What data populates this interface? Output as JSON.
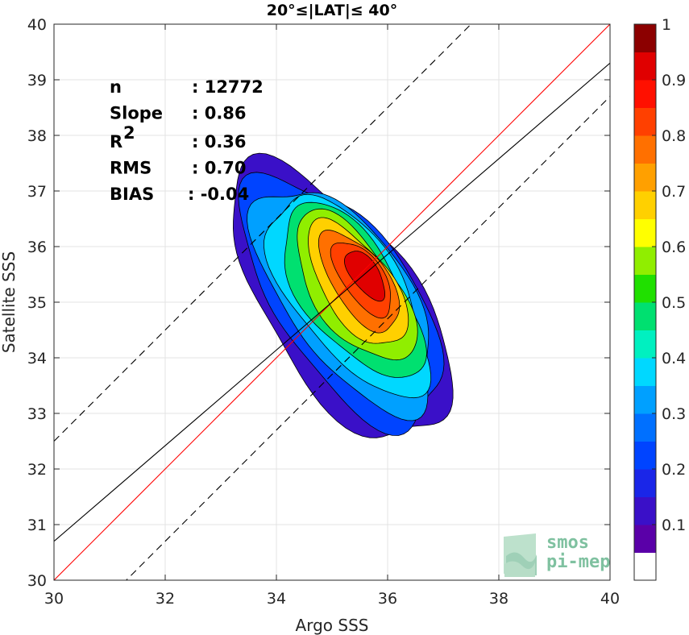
{
  "chart_data": {
    "type": "contour",
    "title": "20°≤|LAT|≤ 40°",
    "xlabel": "Argo SSS",
    "ylabel": "Satellite SSS",
    "xlim": [
      30,
      40
    ],
    "ylim": [
      30,
      40
    ],
    "xticks": [
      "30",
      "32",
      "34",
      "36",
      "38",
      "40"
    ],
    "yticks": [
      "30",
      "31",
      "32",
      "33",
      "34",
      "35",
      "36",
      "37",
      "38",
      "39",
      "40"
    ],
    "grid": true,
    "stats": [
      {
        "label": "n",
        "value": ": 12772"
      },
      {
        "label": "Slope",
        "value": ": 0.86"
      },
      {
        "label": "R",
        "sup": "2",
        "value": ": 0.36"
      },
      {
        "label": "RMS",
        "value": ": 0.70"
      },
      {
        "label": "BIAS",
        "value": ": -0.04"
      }
    ],
    "lines": [
      {
        "name": "one-to-one",
        "color": "#ff0000",
        "style": "solid",
        "slope": 1.0,
        "intercept": 0.0
      },
      {
        "name": "regression",
        "color": "#000000",
        "style": "solid",
        "slope": 0.86,
        "intercept": 4.9
      },
      {
        "name": "upper-bound",
        "color": "#000000",
        "style": "dashed",
        "slope": 1.0,
        "intercept": 2.5
      },
      {
        "name": "lower-bound",
        "color": "#000000",
        "style": "dashed",
        "slope": 1.0,
        "intercept": -1.3
      }
    ],
    "density_peak": {
      "x": 35.65,
      "y": 35.55
    },
    "contour_levels": [
      0.05,
      0.15,
      0.25,
      0.35,
      0.45,
      0.55,
      0.65,
      0.75,
      0.85,
      0.95
    ],
    "colorbar": {
      "ticks": [
        "0.1",
        "0.2",
        "0.3",
        "0.4",
        "0.5",
        "0.6",
        "0.7",
        "0.8",
        "0.9",
        "1"
      ],
      "tick_values": [
        0.1,
        0.2,
        0.3,
        0.4,
        0.5,
        0.6,
        0.7,
        0.8,
        0.9,
        1.0
      ],
      "colors": [
        "#ffffff",
        "#5a00a8",
        "#3a10c8",
        "#1a26e8",
        "#0044ff",
        "#0070ff",
        "#00a0ff",
        "#00d8ff",
        "#00f0c0",
        "#00e070",
        "#20e000",
        "#90ee00",
        "#ffff00",
        "#ffd000",
        "#ffa000",
        "#ff7000",
        "#ff4000",
        "#ff1000",
        "#e00000",
        "#8c0000"
      ]
    },
    "logo": [
      "smos",
      "pi-mep"
    ]
  }
}
